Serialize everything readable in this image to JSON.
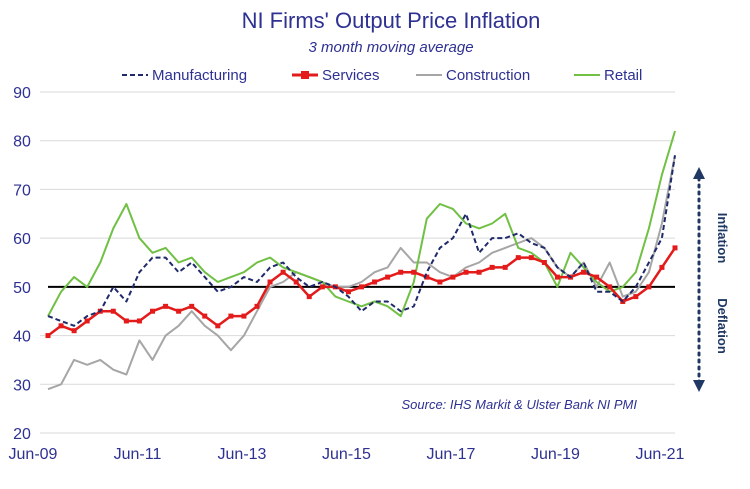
{
  "chart_data": {
    "type": "line",
    "title": "NI Firms' Output Price Inflation",
    "subtitle": "3 month moving average",
    "x_tick_labels": [
      "Jun-09",
      "Jun-11",
      "Jun-13",
      "Jun-15",
      "Jun-17",
      "Jun-19",
      "Jun-21"
    ],
    "x_range": [
      "2009-06",
      "2021-06"
    ],
    "ylim": [
      20,
      90
    ],
    "y_ticks": [
      20,
      30,
      40,
      50,
      60,
      70,
      80,
      90
    ],
    "grid": "horizontal",
    "legend_position": "top",
    "reference_line": 50,
    "annotations": {
      "inflation": "Inflation",
      "deflation": "Deflation",
      "source": "Source: IHS Markit & Ulster Bank NI PMI"
    },
    "series": [
      {
        "name": "Manufacturing",
        "color": "#1f2a6b",
        "style": "dashed",
        "points": [
          [
            "2009-06",
            44
          ],
          [
            "2009-09",
            43
          ],
          [
            "2009-12",
            42
          ],
          [
            "2010-03",
            44
          ],
          [
            "2010-06",
            45
          ],
          [
            "2010-09",
            50
          ],
          [
            "2010-12",
            47
          ],
          [
            "2011-03",
            53
          ],
          [
            "2011-06",
            56
          ],
          [
            "2011-09",
            56
          ],
          [
            "2011-12",
            53
          ],
          [
            "2012-03",
            55
          ],
          [
            "2012-06",
            52
          ],
          [
            "2012-09",
            49
          ],
          [
            "2012-12",
            50
          ],
          [
            "2013-03",
            52
          ],
          [
            "2013-06",
            51
          ],
          [
            "2013-09",
            54
          ],
          [
            "2013-12",
            55
          ],
          [
            "2014-03",
            52
          ],
          [
            "2014-06",
            50
          ],
          [
            "2014-09",
            51
          ],
          [
            "2014-12",
            50
          ],
          [
            "2015-03",
            48
          ],
          [
            "2015-06",
            45
          ],
          [
            "2015-09",
            47
          ],
          [
            "2015-12",
            47
          ],
          [
            "2016-03",
            45
          ],
          [
            "2016-06",
            46
          ],
          [
            "2016-09",
            53
          ],
          [
            "2016-12",
            58
          ],
          [
            "2017-03",
            60
          ],
          [
            "2017-06",
            65
          ],
          [
            "2017-09",
            57
          ],
          [
            "2017-12",
            60
          ],
          [
            "2018-03",
            60
          ],
          [
            "2018-06",
            61
          ],
          [
            "2018-09",
            59
          ],
          [
            "2018-12",
            58
          ],
          [
            "2019-03",
            54
          ],
          [
            "2019-06",
            52
          ],
          [
            "2019-09",
            55
          ],
          [
            "2019-12",
            49
          ],
          [
            "2020-03",
            49
          ],
          [
            "2020-06",
            47
          ],
          [
            "2020-09",
            50
          ],
          [
            "2020-12",
            55
          ],
          [
            "2021-03",
            60
          ],
          [
            "2021-06",
            77
          ]
        ]
      },
      {
        "name": "Services",
        "color": "#e31b1b",
        "style": "solid-marker",
        "points": [
          [
            "2009-06",
            40
          ],
          [
            "2009-09",
            42
          ],
          [
            "2009-12",
            41
          ],
          [
            "2010-03",
            43
          ],
          [
            "2010-06",
            45
          ],
          [
            "2010-09",
            45
          ],
          [
            "2010-12",
            43
          ],
          [
            "2011-03",
            43
          ],
          [
            "2011-06",
            45
          ],
          [
            "2011-09",
            46
          ],
          [
            "2011-12",
            45
          ],
          [
            "2012-03",
            46
          ],
          [
            "2012-06",
            44
          ],
          [
            "2012-09",
            42
          ],
          [
            "2012-12",
            44
          ],
          [
            "2013-03",
            44
          ],
          [
            "2013-06",
            46
          ],
          [
            "2013-09",
            51
          ],
          [
            "2013-12",
            53
          ],
          [
            "2014-03",
            51
          ],
          [
            "2014-06",
            48
          ],
          [
            "2014-09",
            50
          ],
          [
            "2014-12",
            50
          ],
          [
            "2015-03",
            49
          ],
          [
            "2015-06",
            50
          ],
          [
            "2015-09",
            51
          ],
          [
            "2015-12",
            52
          ],
          [
            "2016-03",
            53
          ],
          [
            "2016-06",
            53
          ],
          [
            "2016-09",
            52
          ],
          [
            "2016-12",
            51
          ],
          [
            "2017-03",
            52
          ],
          [
            "2017-06",
            53
          ],
          [
            "2017-09",
            53
          ],
          [
            "2017-12",
            54
          ],
          [
            "2018-03",
            54
          ],
          [
            "2018-06",
            56
          ],
          [
            "2018-09",
            56
          ],
          [
            "2018-12",
            55
          ],
          [
            "2019-03",
            52
          ],
          [
            "2019-06",
            52
          ],
          [
            "2019-09",
            53
          ],
          [
            "2019-12",
            52
          ],
          [
            "2020-03",
            50
          ],
          [
            "2020-06",
            47
          ],
          [
            "2020-09",
            48
          ],
          [
            "2020-12",
            50
          ],
          [
            "2021-03",
            54
          ],
          [
            "2021-06",
            58
          ]
        ]
      },
      {
        "name": "Construction",
        "color": "#a6a6a6",
        "style": "solid",
        "points": [
          [
            "2009-06",
            29
          ],
          [
            "2009-09",
            30
          ],
          [
            "2009-12",
            35
          ],
          [
            "2010-03",
            34
          ],
          [
            "2010-06",
            35
          ],
          [
            "2010-09",
            33
          ],
          [
            "2010-12",
            32
          ],
          [
            "2011-03",
            39
          ],
          [
            "2011-06",
            35
          ],
          [
            "2011-09",
            40
          ],
          [
            "2011-12",
            42
          ],
          [
            "2012-03",
            45
          ],
          [
            "2012-06",
            42
          ],
          [
            "2012-09",
            40
          ],
          [
            "2012-12",
            37
          ],
          [
            "2013-03",
            40
          ],
          [
            "2013-06",
            45
          ],
          [
            "2013-09",
            50
          ],
          [
            "2013-12",
            51
          ],
          [
            "2014-03",
            53
          ],
          [
            "2014-06",
            52
          ],
          [
            "2014-09",
            51
          ],
          [
            "2014-12",
            50
          ],
          [
            "2015-03",
            50
          ],
          [
            "2015-06",
            51
          ],
          [
            "2015-09",
            53
          ],
          [
            "2015-12",
            54
          ],
          [
            "2016-03",
            58
          ],
          [
            "2016-06",
            55
          ],
          [
            "2016-09",
            55
          ],
          [
            "2016-12",
            53
          ],
          [
            "2017-03",
            52
          ],
          [
            "2017-06",
            54
          ],
          [
            "2017-09",
            55
          ],
          [
            "2017-12",
            57
          ],
          [
            "2018-03",
            58
          ],
          [
            "2018-06",
            59
          ],
          [
            "2018-09",
            60
          ],
          [
            "2018-12",
            58
          ],
          [
            "2019-03",
            54
          ],
          [
            "2019-06",
            52
          ],
          [
            "2019-09",
            55
          ],
          [
            "2019-12",
            50
          ],
          [
            "2020-03",
            55
          ],
          [
            "2020-06",
            48
          ],
          [
            "2020-09",
            49
          ],
          [
            "2020-12",
            53
          ],
          [
            "2021-03",
            63
          ],
          [
            "2021-06",
            77
          ]
        ]
      },
      {
        "name": "Retail",
        "color": "#70c044",
        "style": "solid",
        "points": [
          [
            "2009-06",
            44
          ],
          [
            "2009-09",
            49
          ],
          [
            "2009-12",
            52
          ],
          [
            "2010-03",
            50
          ],
          [
            "2010-06",
            55
          ],
          [
            "2010-09",
            62
          ],
          [
            "2010-12",
            67
          ],
          [
            "2011-03",
            60
          ],
          [
            "2011-06",
            57
          ],
          [
            "2011-09",
            58
          ],
          [
            "2011-12",
            55
          ],
          [
            "2012-03",
            56
          ],
          [
            "2012-06",
            53
          ],
          [
            "2012-09",
            51
          ],
          [
            "2012-12",
            52
          ],
          [
            "2013-03",
            53
          ],
          [
            "2013-06",
            55
          ],
          [
            "2013-09",
            56
          ],
          [
            "2013-12",
            54
          ],
          [
            "2014-03",
            53
          ],
          [
            "2014-06",
            52
          ],
          [
            "2014-09",
            51
          ],
          [
            "2014-12",
            48
          ],
          [
            "2015-03",
            47
          ],
          [
            "2015-06",
            46
          ],
          [
            "2015-09",
            47
          ],
          [
            "2015-12",
            46
          ],
          [
            "2016-03",
            44
          ],
          [
            "2016-06",
            51
          ],
          [
            "2016-09",
            64
          ],
          [
            "2016-12",
            67
          ],
          [
            "2017-03",
            66
          ],
          [
            "2017-06",
            63
          ],
          [
            "2017-09",
            62
          ],
          [
            "2017-12",
            63
          ],
          [
            "2018-03",
            65
          ],
          [
            "2018-06",
            58
          ],
          [
            "2018-09",
            57
          ],
          [
            "2018-12",
            55
          ],
          [
            "2019-03",
            50
          ],
          [
            "2019-06",
            57
          ],
          [
            "2019-09",
            54
          ],
          [
            "2019-12",
            51
          ],
          [
            "2020-03",
            49
          ],
          [
            "2020-06",
            50
          ],
          [
            "2020-09",
            53
          ],
          [
            "2020-12",
            62
          ],
          [
            "2021-03",
            73
          ],
          [
            "2021-06",
            82
          ]
        ]
      }
    ]
  }
}
